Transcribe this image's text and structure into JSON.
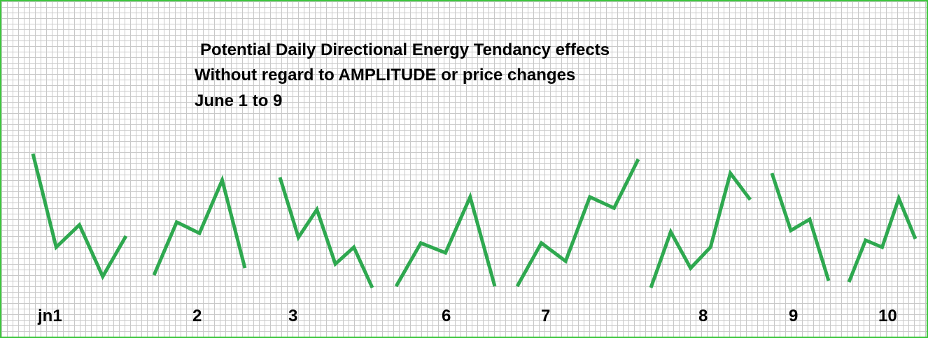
{
  "chart_data": {
    "type": "line",
    "title_lines": [
      "Potential Daily Directional Energy Tendancy effects",
      "Without regard to AMPLITUDE or price changes",
      "June 1 to 9"
    ],
    "xlabel": "",
    "ylabel": "",
    "grid": true,
    "line_color": "#2ea84f",
    "series": [
      {
        "label": "jn1",
        "values": [
          0.96,
          0.29,
          0.45,
          0.08,
          0.37
        ]
      },
      {
        "label": "2",
        "values": [
          0.09,
          0.47,
          0.39,
          0.77,
          0.14
        ]
      },
      {
        "label": "3",
        "values": [
          0.79,
          0.36,
          0.56,
          0.17,
          0.29,
          0.0
        ]
      },
      {
        "label": "6",
        "values": [
          0.01,
          0.32,
          0.25,
          0.65,
          0.01
        ]
      },
      {
        "label": "7",
        "values": [
          0.01,
          0.32,
          0.19,
          0.65,
          0.57,
          0.92
        ]
      },
      {
        "label": "8",
        "values": [
          0.0,
          0.4,
          0.14,
          0.29,
          0.82,
          0.63
        ]
      },
      {
        "label": "9",
        "values": [
          0.82,
          0.41,
          0.49,
          0.05
        ]
      },
      {
        "label": "10",
        "values": [
          0.04,
          0.34,
          0.29,
          0.64,
          0.35
        ]
      }
    ]
  }
}
